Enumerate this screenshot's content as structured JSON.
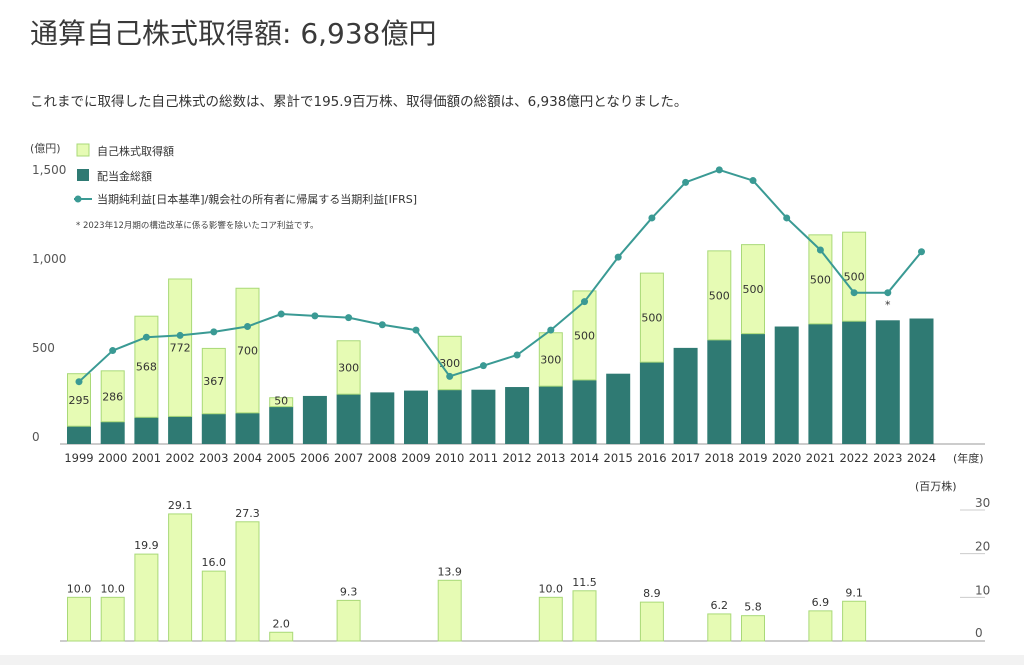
{
  "title": "通算自己株式取得額: 6,938億円",
  "description": "これまでに取得した自己株式の総数は、累計で195.9百万株、取得価額の総額は、6,938億円となりました。",
  "colors": {
    "buyback": "#e6fbb4",
    "buyback_stroke": "#a9d978",
    "dividend": "#2f7a73",
    "net_income": "#3a9a94",
    "axis": "#999999",
    "text": "#333333"
  },
  "chart_data": [
    {
      "type": "bar",
      "ylabel": "(億円)",
      "xlabel": "(年度)",
      "ylim": [
        0,
        1500
      ],
      "yticks": [
        "0",
        "500",
        "1,000",
        "1,500"
      ],
      "legend_position": "top-left",
      "note": "* 2023年12月期の構造改革に係る影響を除いたコア利益です。",
      "categories": [
        "1999",
        "2000",
        "2001",
        "2002",
        "2003",
        "2004",
        "2005",
        "2006",
        "2007",
        "2008",
        "2009",
        "2010",
        "2011",
        "2012",
        "2013",
        "2014",
        "2015",
        "2016",
        "2017",
        "2018",
        "2019",
        "2020",
        "2021",
        "2022",
        "2023",
        "2024"
      ],
      "series": [
        {
          "name": "配当金総額",
          "kind": "stacked-bar",
          "values": [
            100,
            125,
            150,
            155,
            170,
            175,
            210,
            270,
            280,
            290,
            300,
            305,
            305,
            320,
            325,
            360,
            395,
            460,
            540,
            585,
            620,
            660,
            675,
            690,
            695,
            705
          ]
        },
        {
          "name": "自己株式取得額",
          "kind": "stacked-bar",
          "values": [
            295,
            286,
            568,
            772,
            367,
            700,
            50,
            0,
            300,
            0,
            0,
            300,
            0,
            0,
            300,
            500,
            0,
            500,
            0,
            500,
            500,
            0,
            500,
            500,
            0,
            0
          ],
          "labels": [
            "295",
            "286",
            "568",
            "772",
            "367",
            "700",
            "50",
            "",
            "300",
            "",
            "",
            "300",
            "",
            "",
            "300",
            "500",
            "",
            "500",
            "",
            "500",
            "500",
            "",
            "500",
            "500",
            "",
            ""
          ]
        },
        {
          "name": "当期純利益[日本基準]/親会社の所有者に帰属する当期利益[IFRS]",
          "kind": "line",
          "values": [
            350,
            525,
            600,
            610,
            630,
            660,
            730,
            720,
            710,
            670,
            640,
            380,
            440,
            500,
            640,
            800,
            1050,
            1270,
            1470,
            1540,
            1480,
            1270,
            1090,
            850,
            850,
            1080
          ],
          "marker_note_index": 24,
          "marker_note": "*"
        }
      ]
    },
    {
      "type": "bar",
      "ylabel": "(百万株)",
      "ylim": [
        0,
        30
      ],
      "yticks": [
        "0",
        "10",
        "20",
        "30"
      ],
      "categories": [
        "1999",
        "2000",
        "2001",
        "2002",
        "2003",
        "2004",
        "2005",
        "2006",
        "2007",
        "2008",
        "2009",
        "2010",
        "2011",
        "2012",
        "2013",
        "2014",
        "2015",
        "2016",
        "2017",
        "2018",
        "2019",
        "2020",
        "2021",
        "2022",
        "2023",
        "2024"
      ],
      "values": [
        10.0,
        10.0,
        19.9,
        29.1,
        16.0,
        27.3,
        2.0,
        null,
        9.3,
        null,
        null,
        13.9,
        null,
        null,
        10.0,
        11.5,
        null,
        8.9,
        null,
        6.2,
        5.8,
        null,
        6.9,
        9.1,
        null,
        null
      ],
      "labels": [
        "10.0",
        "10.0",
        "19.9",
        "29.1",
        "16.0",
        "27.3",
        "2.0",
        "",
        "9.3",
        "",
        "",
        "13.9",
        "",
        "",
        "10.0",
        "11.5",
        "",
        "8.9",
        "",
        "6.2",
        "5.8",
        "",
        "6.9",
        "9.1",
        "",
        ""
      ]
    }
  ]
}
